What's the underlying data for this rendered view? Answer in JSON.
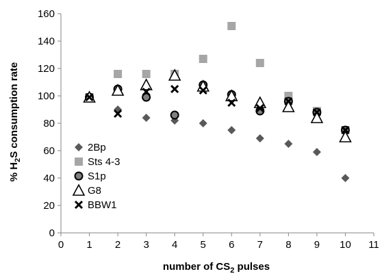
{
  "chart_data": {
    "type": "scatter",
    "xlabel": {
      "pre": "number of CS",
      "sub": "2",
      "post": " pulses"
    },
    "ylabel": {
      "pre": "% H",
      "sub": "2",
      "post": "S consumption rate"
    },
    "xlim": [
      0,
      11
    ],
    "ylim": [
      0,
      160
    ],
    "x_ticks": [
      "0",
      "1",
      "2",
      "3",
      "4",
      "5",
      "6",
      "7",
      "8",
      "9",
      "10",
      "11"
    ],
    "y_ticks": [
      "0",
      "20",
      "40",
      "60",
      "80",
      "100",
      "120",
      "140",
      "160"
    ],
    "grid": false,
    "legend_position": "left",
    "series": [
      {
        "name": "2Bp",
        "marker": "diamond",
        "color": "#595959",
        "x": [
          1,
          2,
          3,
          4,
          5,
          6,
          7,
          8,
          9,
          10
        ],
        "y": [
          99,
          90,
          84,
          82,
          80,
          75,
          69,
          65,
          59,
          40
        ]
      },
      {
        "name": "Sts 4-3",
        "marker": "square",
        "color": "#a6a6a6",
        "x": [
          1,
          2,
          3,
          4,
          5,
          6,
          7,
          8,
          9,
          10
        ],
        "y": [
          99,
          116,
          116,
          116,
          127,
          151,
          124,
          100,
          89,
          75
        ]
      },
      {
        "name": "S1p",
        "marker": "circle",
        "color": "#7f7f7f",
        "x": [
          1,
          2,
          3,
          4,
          5,
          6,
          7,
          8,
          9,
          10
        ],
        "y": [
          99,
          105,
          99,
          86,
          108,
          101,
          89,
          96,
          88,
          75
        ]
      },
      {
        "name": "G8",
        "marker": "triangle",
        "color": "#000000",
        "x": [
          1,
          2,
          3,
          4,
          5,
          6,
          7,
          8,
          9,
          10
        ],
        "y": [
          99,
          104,
          108,
          115,
          107,
          100,
          95,
          92,
          84,
          70
        ]
      },
      {
        "name": "BBW1",
        "marker": "x",
        "color": "#000000",
        "x": [
          1,
          2,
          3,
          4,
          5,
          6,
          7,
          8,
          9,
          10
        ],
        "y": [
          99,
          87,
          103,
          105,
          104,
          95,
          91,
          96,
          88,
          75
        ]
      }
    ]
  }
}
